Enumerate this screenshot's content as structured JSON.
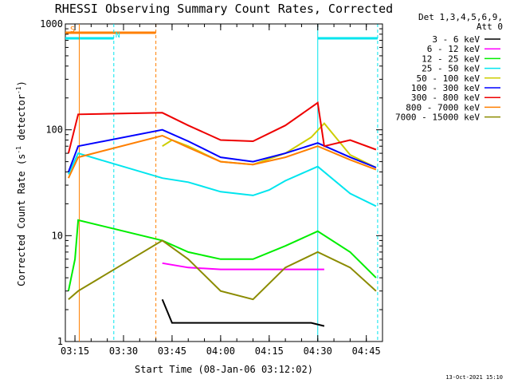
{
  "chart_data": {
    "type": "line",
    "title": "RHESSI Observing Summary Count Rates, Corrected",
    "xlabel": "Start Time (08-Jan-06 03:12:02)",
    "ylabel_main": "Corrected Count Rate (s",
    "ylabel_sup1": "-1",
    "ylabel_mid": " detector",
    "ylabel_sup2": "-1",
    "ylabel_end": ")",
    "yscale": "log",
    "ylim": [
      1,
      1000
    ],
    "xlim": [
      "03:12:02",
      "04:50:00"
    ],
    "x_ticks": [
      "03:15",
      "03:30",
      "03:45",
      "04:00",
      "04:15",
      "04:30",
      "04:45"
    ],
    "y_ticks": [
      "1",
      "10",
      "100",
      "1000"
    ],
    "legend_header": [
      "Det 1,3,4,5,6,9,",
      "Att 0"
    ],
    "legend_position": "right",
    "timestamp": "13-Oct-2021 15:10",
    "flags": [
      {
        "label": "S",
        "color": "#ff7f00",
        "start": "03:12:02",
        "end": "03:40:00"
      },
      {
        "label": "N",
        "color": "#00e5ee",
        "start": "03:12:02",
        "end": "03:27:00"
      },
      {
        "label": "",
        "color": "#00e5ee",
        "start": "04:30:00",
        "end": "04:48:30"
      }
    ],
    "markers": [
      {
        "time": "03:16:20",
        "color": "#ff7f00",
        "style": "solid"
      },
      {
        "time": "03:27:00",
        "color": "#00e5ee",
        "style": "dashed"
      },
      {
        "time": "03:40:00",
        "color": "#ff7f00",
        "style": "dashed"
      },
      {
        "time": "04:30:00",
        "color": "#00e5ee",
        "style": "solid"
      },
      {
        "time": "04:48:30",
        "color": "#00e5ee",
        "style": "dashed"
      }
    ],
    "series": [
      {
        "name": "3 - 6 keV",
        "color": "#000000",
        "x": [
          "03:42",
          "03:45",
          "04:28",
          "04:32"
        ],
        "values": [
          2.5,
          1.5,
          1.5,
          1.4
        ]
      },
      {
        "name": "6 - 12 keV",
        "color": "#ff00ff",
        "x": [
          "03:42",
          "03:50",
          "04:00",
          "04:10",
          "04:20",
          "04:32"
        ],
        "values": [
          5.5,
          5.0,
          4.8,
          4.8,
          4.8,
          4.8
        ]
      },
      {
        "name": "12 - 25 keV",
        "color": "#00ee00",
        "x": [
          "03:13",
          "03:15",
          "03:16",
          "03:42",
          "03:50",
          "04:00",
          "04:10",
          "04:20",
          "04:30",
          "04:40",
          "04:48"
        ],
        "values": [
          3,
          6,
          14,
          9,
          7,
          6,
          6,
          8,
          11,
          7,
          4
        ]
      },
      {
        "name": "25 - 50 keV",
        "color": "#00e5ee",
        "x": [
          "03:13",
          "03:16",
          "03:42",
          "03:50",
          "04:00",
          "04:10",
          "04:15",
          "04:20",
          "04:30",
          "04:40",
          "04:48"
        ],
        "values": [
          38,
          60,
          35,
          32,
          26,
          24,
          27,
          33,
          45,
          25,
          19
        ]
      },
      {
        "name": "50 - 100 keV",
        "color": "#cdcd00",
        "x": [
          "03:42",
          "03:45",
          "03:50",
          "04:00",
          "04:10",
          "04:20",
          "04:28",
          "04:32",
          "04:40",
          "04:48"
        ],
        "values": [
          70,
          80,
          70,
          50,
          47,
          60,
          85,
          115,
          58,
          44
        ]
      },
      {
        "name": "100 - 300 keV",
        "color": "#0000ff",
        "x": [
          "03:13",
          "03:16",
          "03:42",
          "03:50",
          "04:00",
          "04:10",
          "04:20",
          "04:30",
          "04:40",
          "04:48"
        ],
        "values": [
          40,
          70,
          100,
          78,
          55,
          50,
          60,
          75,
          55,
          44
        ]
      },
      {
        "name": "300 - 800 keV",
        "color": "#ee0000",
        "x": [
          "03:13",
          "03:16",
          "03:42",
          "03:50",
          "04:00",
          "04:10",
          "04:20",
          "04:30",
          "04:32",
          "04:40",
          "04:48"
        ],
        "values": [
          60,
          140,
          145,
          110,
          80,
          78,
          110,
          180,
          70,
          80,
          65
        ]
      },
      {
        "name": "800 - 7000 keV",
        "color": "#ff7f00",
        "x": [
          "03:13",
          "03:16",
          "03:42",
          "03:50",
          "04:00",
          "04:10",
          "04:20",
          "04:30",
          "04:40",
          "04:48"
        ],
        "values": [
          35,
          55,
          88,
          68,
          50,
          47,
          55,
          70,
          52,
          42
        ]
      },
      {
        "name": "7000 - 15000 keV",
        "color": "#8b8b00",
        "x": [
          "03:13",
          "03:16",
          "03:42",
          "03:50",
          "04:00",
          "04:10",
          "04:20",
          "04:30",
          "04:40",
          "04:48"
        ],
        "values": [
          2.5,
          3,
          9,
          6,
          3,
          2.5,
          5,
          7,
          5,
          3
        ]
      }
    ]
  }
}
